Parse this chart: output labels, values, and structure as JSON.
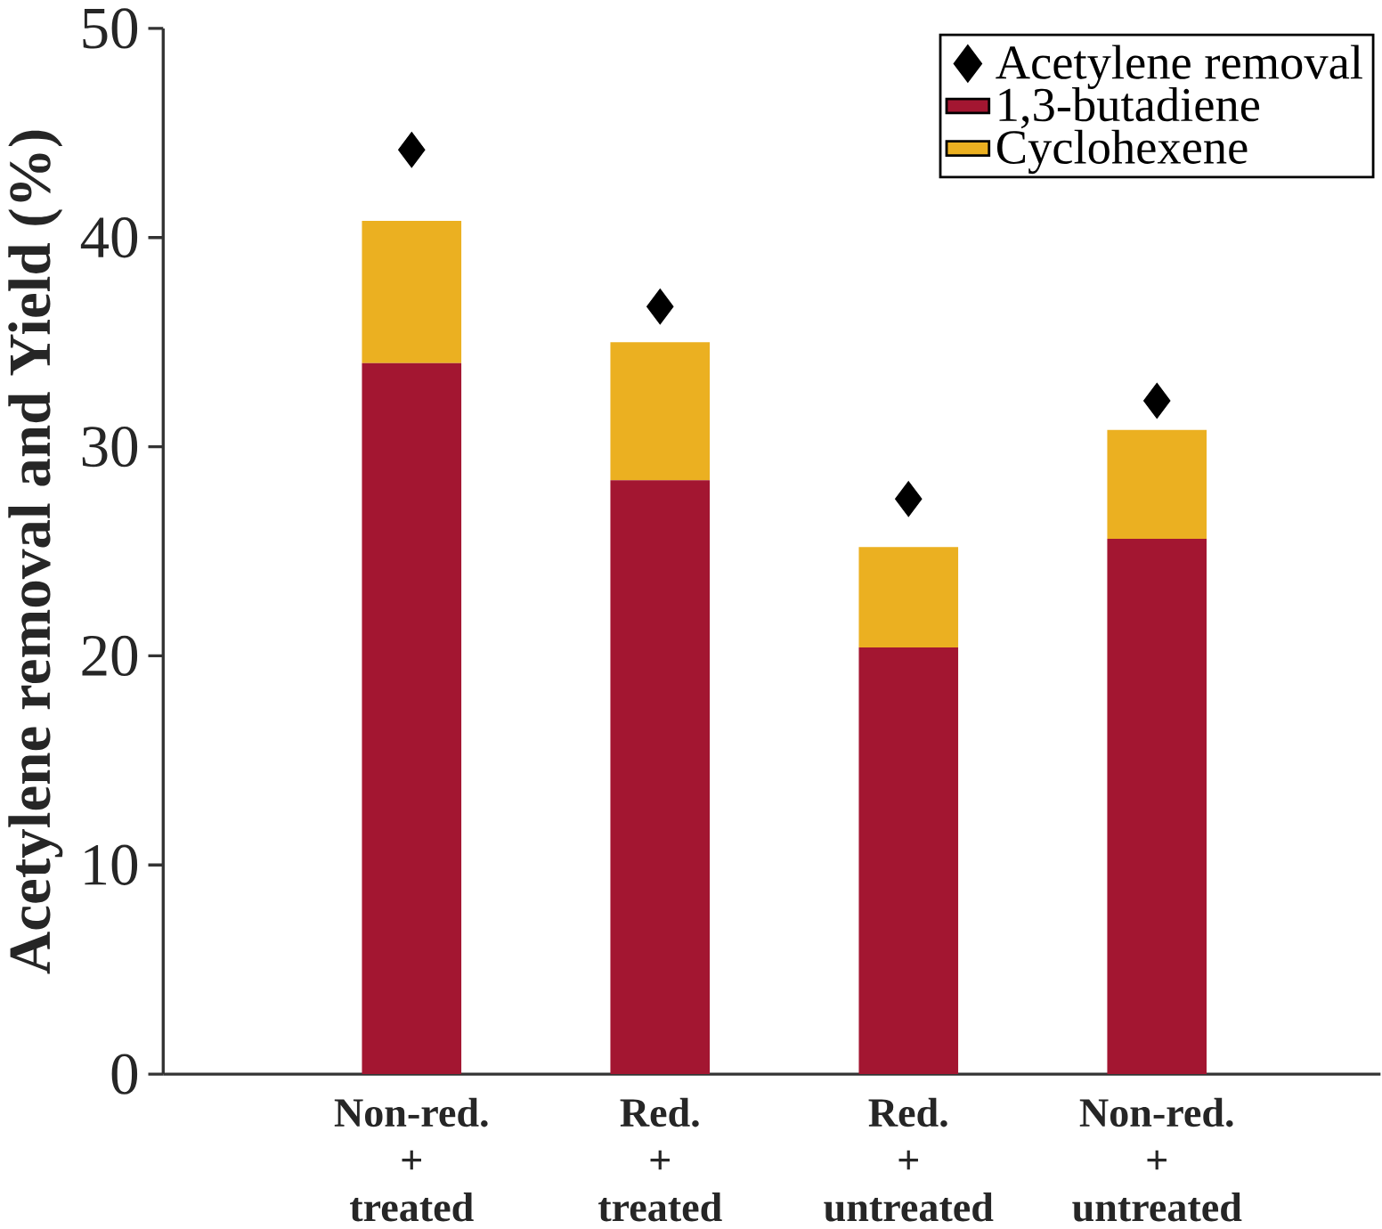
{
  "chart_data": {
    "type": "bar",
    "ylabel": "Acetylene removal and Yield (%)",
    "categories": [
      "Non-red.\n+\ntreated",
      "Red.\n+\ntreated",
      "Red.\n+\nuntreated",
      "Non-red.\n+\nuntreated"
    ],
    "stacked": true,
    "ylim": [
      0,
      50
    ],
    "yticks": [
      0,
      10,
      20,
      30,
      40,
      50
    ],
    "grid": false,
    "legend": "top right",
    "series": [
      {
        "name": "Acetylene removal",
        "type": "scatter",
        "marker": "diamond",
        "color": "#000000",
        "values": [
          44.2,
          36.7,
          27.5,
          32.2
        ]
      },
      {
        "name": "1,3-butadiene",
        "color": "#a31631",
        "values": [
          34.0,
          28.4,
          20.4,
          25.6
        ]
      },
      {
        "name": "Cyclohexene",
        "color": "#ebb021",
        "values": [
          6.8,
          6.6,
          4.8,
          5.2
        ]
      }
    ]
  }
}
